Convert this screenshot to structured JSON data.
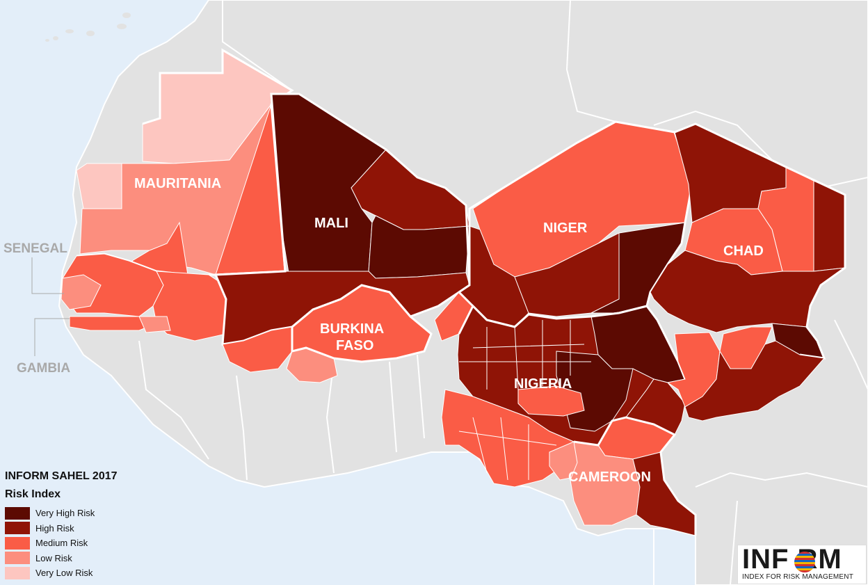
{
  "colors": {
    "ocean": "#e3eef9",
    "land_outside": "#e2e2e2",
    "very_high": "#5c0a02",
    "high": "#8f1406",
    "medium": "#fa5c46",
    "low": "#fc8e7e",
    "very_low": "#fdc6c0",
    "border": "#ffffff"
  },
  "countries": {
    "mauritania": {
      "label": "MAURITANIA"
    },
    "mali": {
      "label": "MALI"
    },
    "niger": {
      "label": "NIGER"
    },
    "chad": {
      "label": "CHAD"
    },
    "burkina_faso": {
      "label_line1": "BURKINA",
      "label_line2": "FASO"
    },
    "nigeria": {
      "label": "NIGERIA"
    },
    "cameroon": {
      "label": "CAMEROON"
    },
    "senegal": {
      "label": "SENEGAL"
    },
    "gambia": {
      "label": "GAMBIA"
    }
  },
  "legend": {
    "title": "INFORM SAHEL 2017",
    "subtitle": "Risk Index",
    "items": [
      {
        "label": "Very High Risk",
        "color": "#5c0a02"
      },
      {
        "label": "High Risk",
        "color": "#8f1406"
      },
      {
        "label": "Medium Risk",
        "color": "#fa5c46"
      },
      {
        "label": "Low Risk",
        "color": "#fc8e7e"
      },
      {
        "label": "Very Low Risk",
        "color": "#fdc6c0"
      }
    ]
  },
  "logo": {
    "word": "INF RM",
    "tagline": "INDEX FOR RISK MANAGEMENT",
    "icon": "globe-icon"
  }
}
